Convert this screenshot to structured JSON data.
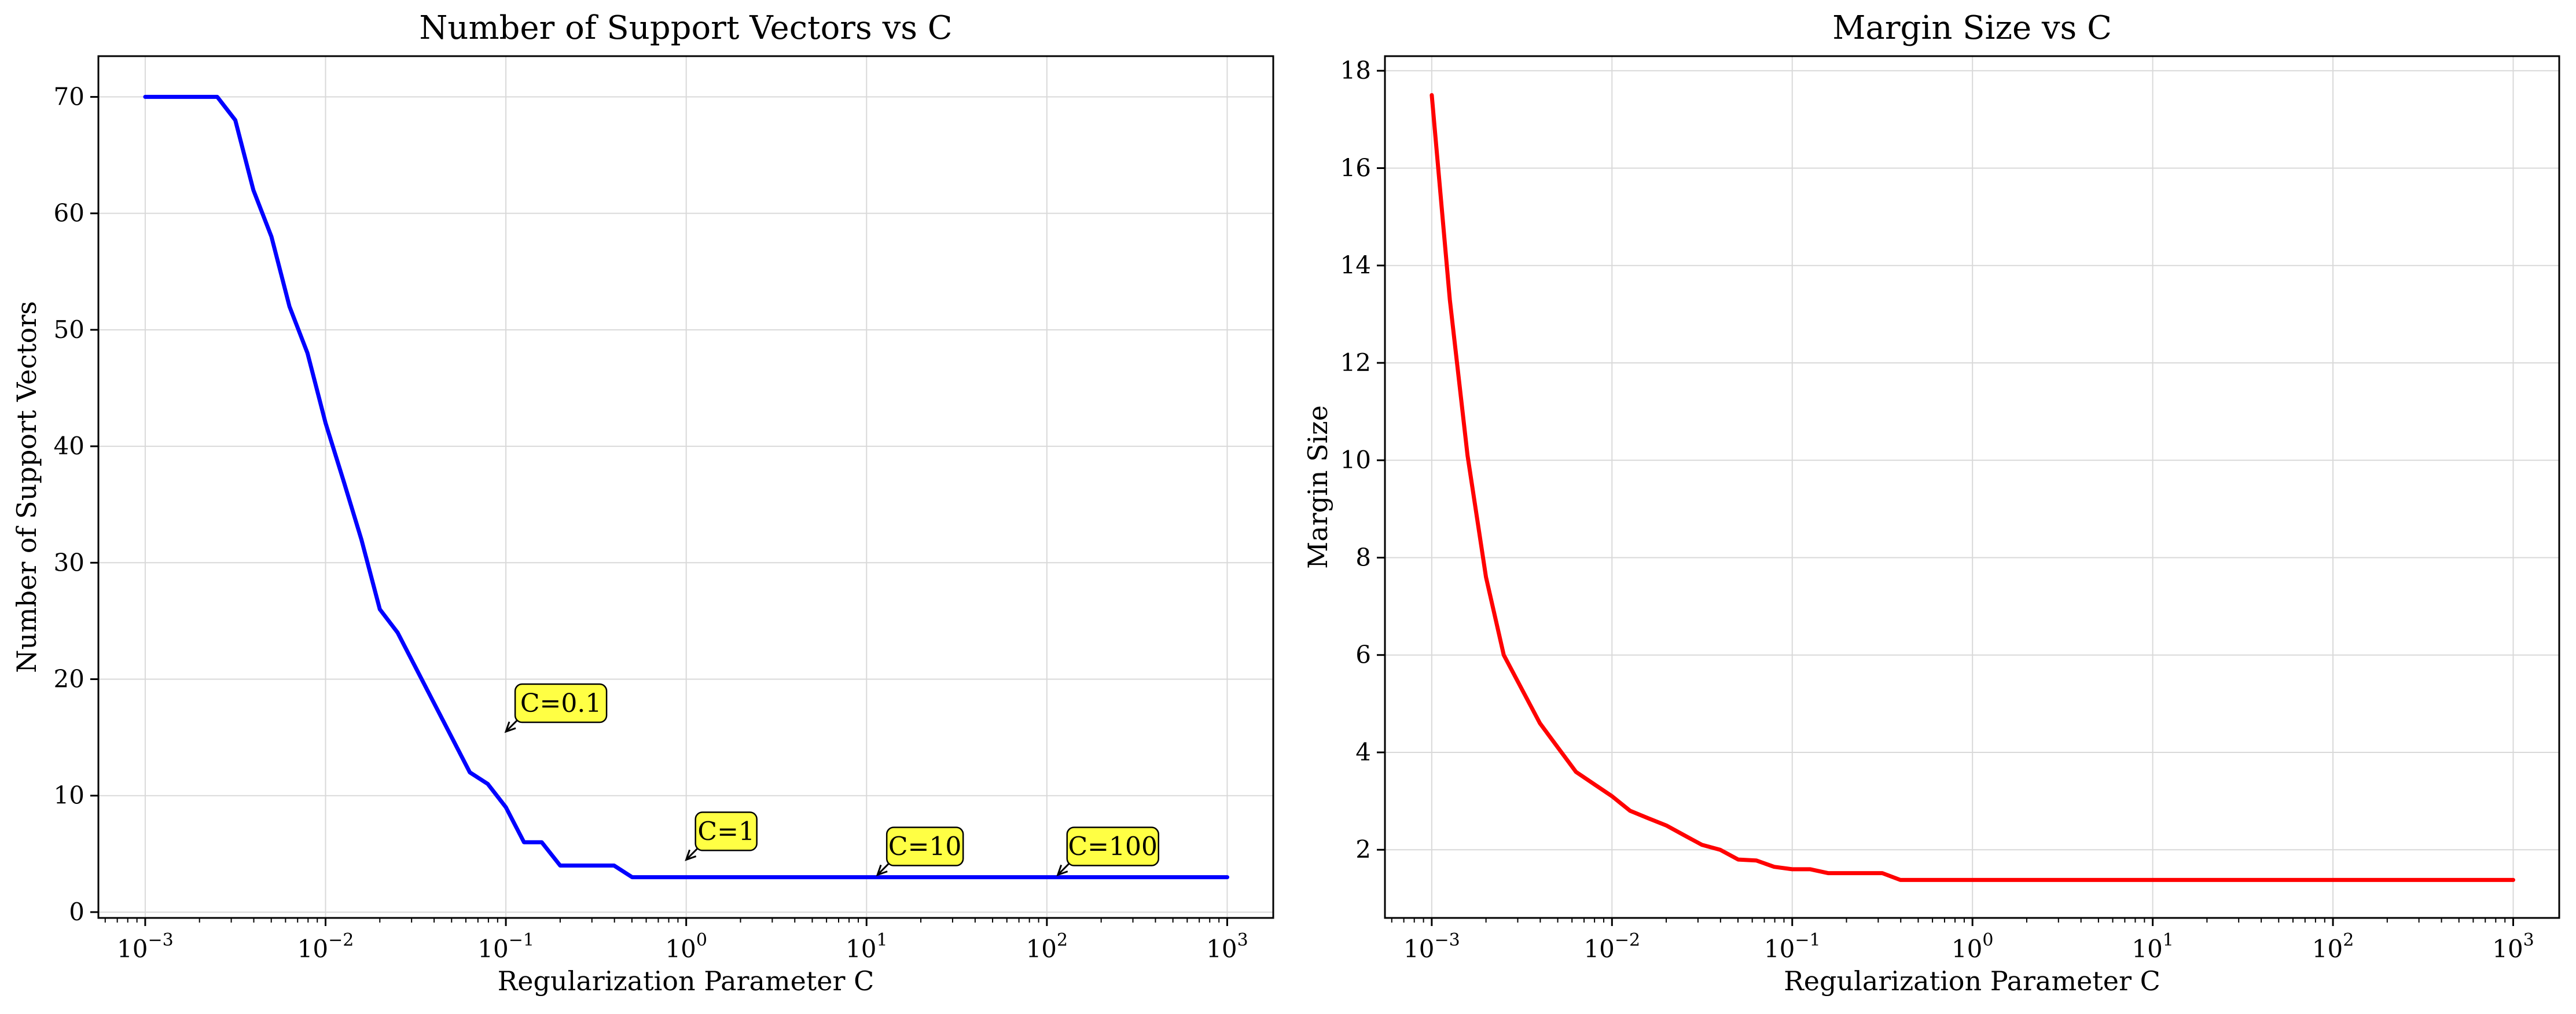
{
  "chart_data": [
    {
      "type": "line",
      "title": "Number of Support Vectors vs C",
      "xlabel": "Regularization Parameter C",
      "ylabel": "Number of Support Vectors",
      "xscale": "log",
      "xlim": [
        0.00055,
        1800
      ],
      "ylim": [
        -0.5,
        73.5
      ],
      "xticks": [
        {
          "value": 0.001,
          "base": "10",
          "exp": "−3"
        },
        {
          "value": 0.01,
          "base": "10",
          "exp": "−2"
        },
        {
          "value": 0.1,
          "base": "10",
          "exp": "−1"
        },
        {
          "value": 1,
          "base": "10",
          "exp": "0"
        },
        {
          "value": 10,
          "base": "10",
          "exp": "1"
        },
        {
          "value": 100,
          "base": "10",
          "exp": "2"
        },
        {
          "value": 1000,
          "base": "10",
          "exp": "3"
        }
      ],
      "yticks": [
        {
          "value": 0,
          "label": "0"
        },
        {
          "value": 10,
          "label": "10"
        },
        {
          "value": 20,
          "label": "20"
        },
        {
          "value": 30,
          "label": "30"
        },
        {
          "value": 40,
          "label": "40"
        },
        {
          "value": 50,
          "label": "50"
        },
        {
          "value": 60,
          "label": "60"
        },
        {
          "value": 70,
          "label": "70"
        }
      ],
      "grid": true,
      "series": [
        {
          "color": "#0000ff",
          "x": [
            0.001,
            0.00126,
            0.00158,
            0.002,
            0.00251,
            0.00316,
            0.00398,
            0.00501,
            0.00631,
            0.00794,
            0.01,
            0.0126,
            0.0158,
            0.02,
            0.0251,
            0.0316,
            0.0398,
            0.0501,
            0.0631,
            0.0794,
            0.1,
            0.126,
            0.158,
            0.2,
            0.251,
            0.316,
            0.398,
            0.501,
            0.631,
            0.794,
            1,
            1.26,
            1.58,
            2,
            5,
            10,
            50,
            100,
            500,
            1000
          ],
          "y": [
            70,
            70,
            70,
            70,
            70,
            68,
            62,
            58,
            52,
            48,
            42,
            37,
            32,
            26,
            24,
            21,
            18,
            15,
            12,
            11,
            9,
            6,
            6,
            4,
            4,
            4,
            4,
            3,
            3,
            3,
            3,
            3,
            3,
            3,
            3,
            3,
            3,
            3,
            3,
            3
          ]
        }
      ],
      "annotations": [
        {
          "text": "C=0.1",
          "x": 0.1,
          "y": 15.5
        },
        {
          "text": "C=1",
          "x": 1,
          "y": 4.5
        },
        {
          "text": "C=10",
          "x": 11.5,
          "y": 3.2
        },
        {
          "text": "C=100",
          "x": 115,
          "y": 3.2
        }
      ],
      "annotation_box_color": "#ffff44"
    },
    {
      "type": "line",
      "title": "Margin Size vs C",
      "xlabel": "Regularization Parameter C",
      "ylabel": "Margin Size",
      "xscale": "log",
      "xlim": [
        0.00055,
        1800
      ],
      "ylim": [
        0.6,
        18.3
      ],
      "xticks": [
        {
          "value": 0.001,
          "base": "10",
          "exp": "−3"
        },
        {
          "value": 0.01,
          "base": "10",
          "exp": "−2"
        },
        {
          "value": 0.1,
          "base": "10",
          "exp": "−1"
        },
        {
          "value": 1,
          "base": "10",
          "exp": "0"
        },
        {
          "value": 10,
          "base": "10",
          "exp": "1"
        },
        {
          "value": 100,
          "base": "10",
          "exp": "2"
        },
        {
          "value": 1000,
          "base": "10",
          "exp": "3"
        }
      ],
      "yticks": [
        {
          "value": 2,
          "label": "2"
        },
        {
          "value": 4,
          "label": "4"
        },
        {
          "value": 6,
          "label": "6"
        },
        {
          "value": 8,
          "label": "8"
        },
        {
          "value": 10,
          "label": "10"
        },
        {
          "value": 12,
          "label": "12"
        },
        {
          "value": 14,
          "label": "14"
        },
        {
          "value": 16,
          "label": "16"
        },
        {
          "value": 18,
          "label": "18"
        }
      ],
      "grid": true,
      "series": [
        {
          "color": "#ff0000",
          "x": [
            0.001,
            0.00126,
            0.00158,
            0.002,
            0.00251,
            0.00316,
            0.00398,
            0.00501,
            0.00631,
            0.00794,
            0.01,
            0.0126,
            0.0158,
            0.02,
            0.0251,
            0.0316,
            0.0398,
            0.0501,
            0.0631,
            0.0794,
            0.1,
            0.126,
            0.158,
            0.2,
            0.251,
            0.316,
            0.398,
            0.501,
            0.631,
            0.794,
            1,
            1.26,
            1.58,
            2,
            5,
            10,
            50,
            100,
            500,
            1000
          ],
          "y": [
            17.5,
            13.3,
            10.1,
            7.6,
            6.0,
            5.3,
            4.6,
            4.1,
            3.6,
            3.35,
            3.1,
            2.8,
            2.65,
            2.5,
            2.3,
            2.1,
            2.0,
            1.8,
            1.78,
            1.65,
            1.6,
            1.6,
            1.52,
            1.52,
            1.52,
            1.52,
            1.38,
            1.38,
            1.38,
            1.38,
            1.38,
            1.38,
            1.38,
            1.38,
            1.38,
            1.38,
            1.38,
            1.38,
            1.38,
            1.38
          ]
        }
      ]
    }
  ]
}
